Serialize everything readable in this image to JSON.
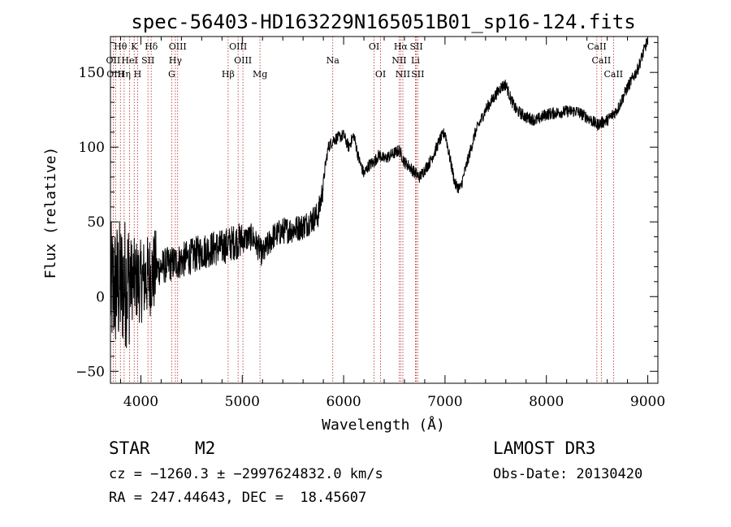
{
  "chart_data": {
    "type": "line",
    "title": "spec-56403-HD163229N165051B01_sp16-124.fits",
    "xlabel": "Wavelength (Å)",
    "ylabel": "Flux (relative)",
    "xlim": [
      3700,
      9100
    ],
    "ylim": [
      -58,
      174
    ],
    "x_ticks": [
      4000,
      5000,
      6000,
      7000,
      8000,
      9000
    ],
    "y_ticks": [
      -50,
      0,
      50,
      100,
      150
    ],
    "grid": false,
    "series_color": "#000000",
    "line_marker_color": "#b22222",
    "spectrum_anchors": [
      [
        3700,
        5
      ],
      [
        3800,
        8
      ],
      [
        3900,
        12
      ],
      [
        4000,
        10
      ],
      [
        4100,
        15
      ],
      [
        4200,
        20
      ],
      [
        4300,
        22
      ],
      [
        4400,
        24
      ],
      [
        4500,
        27
      ],
      [
        4600,
        30
      ],
      [
        4700,
        32
      ],
      [
        4800,
        33
      ],
      [
        4900,
        36
      ],
      [
        5000,
        38
      ],
      [
        5100,
        40
      ],
      [
        5200,
        28
      ],
      [
        5300,
        40
      ],
      [
        5400,
        44
      ],
      [
        5500,
        45
      ],
      [
        5600,
        47
      ],
      [
        5700,
        52
      ],
      [
        5750,
        55
      ],
      [
        5790,
        70
      ],
      [
        5820,
        88
      ],
      [
        5850,
        100
      ],
      [
        5900,
        105
      ],
      [
        6000,
        108
      ],
      [
        6050,
        100
      ],
      [
        6100,
        108
      ],
      [
        6150,
        92
      ],
      [
        6200,
        82
      ],
      [
        6250,
        88
      ],
      [
        6300,
        90
      ],
      [
        6350,
        95
      ],
      [
        6400,
        92
      ],
      [
        6500,
        96
      ],
      [
        6550,
        98
      ],
      [
        6600,
        90
      ],
      [
        6650,
        87
      ],
      [
        6700,
        83
      ],
      [
        6750,
        80
      ],
      [
        6800,
        85
      ],
      [
        6850,
        90
      ],
      [
        6900,
        97
      ],
      [
        6950,
        105
      ],
      [
        7000,
        110
      ],
      [
        7050,
        92
      ],
      [
        7100,
        75
      ],
      [
        7150,
        72
      ],
      [
        7200,
        85
      ],
      [
        7300,
        110
      ],
      [
        7400,
        125
      ],
      [
        7500,
        135
      ],
      [
        7550,
        140
      ],
      [
        7600,
        142
      ],
      [
        7650,
        132
      ],
      [
        7700,
        125
      ],
      [
        7800,
        120
      ],
      [
        7900,
        118
      ],
      [
        8000,
        122
      ],
      [
        8100,
        123
      ],
      [
        8200,
        124
      ],
      [
        8300,
        124
      ],
      [
        8400,
        120
      ],
      [
        8500,
        115
      ],
      [
        8600,
        118
      ],
      [
        8700,
        125
      ],
      [
        8800,
        140
      ],
      [
        8900,
        152
      ],
      [
        8950,
        162
      ],
      [
        9000,
        172
      ]
    ],
    "spectral_lines": [
      {
        "label": "Hθ",
        "x": 3798,
        "row": 1
      },
      {
        "label": "K",
        "x": 3934,
        "row": 1
      },
      {
        "label": "Hδ",
        "x": 4102,
        "row": 1
      },
      {
        "label": "OIII",
        "x": 4363,
        "row": 1
      },
      {
        "label": "OIII",
        "x": 4959,
        "row": 1
      },
      {
        "label": "OI",
        "x": 6300,
        "row": 1
      },
      {
        "label": "Hα",
        "x": 6563,
        "row": 1
      },
      {
        "label": "SII",
        "x": 6717,
        "row": 1
      },
      {
        "label": "CaII",
        "x": 8498,
        "row": 1
      },
      {
        "label": "OII",
        "x": 3727,
        "row": 2
      },
      {
        "label": "HeI",
        "x": 3889,
        "row": 2
      },
      {
        "label": "SII",
        "x": 4070,
        "row": 2
      },
      {
        "label": "Hγ",
        "x": 4340,
        "row": 2
      },
      {
        "label": "OIII",
        "x": 5007,
        "row": 2
      },
      {
        "label": "Na",
        "x": 5893,
        "row": 2
      },
      {
        "label": "NII",
        "x": 6548,
        "row": 2
      },
      {
        "label": "Li",
        "x": 6708,
        "row": 2
      },
      {
        "label": "CaII",
        "x": 8542,
        "row": 2
      },
      {
        "label": "OIII",
        "x": 3750,
        "row": 3
      },
      {
        "label": "Hη",
        "x": 3835,
        "row": 3
      },
      {
        "label": "H",
        "x": 3968,
        "row": 3
      },
      {
        "label": "G",
        "x": 4304,
        "row": 3
      },
      {
        "label": "Hβ",
        "x": 4861,
        "row": 3
      },
      {
        "label": "Mg",
        "x": 5175,
        "row": 3
      },
      {
        "label": "OI",
        "x": 6364,
        "row": 3
      },
      {
        "label": "NII",
        "x": 6584,
        "row": 3
      },
      {
        "label": "SII",
        "x": 6731,
        "row": 3
      },
      {
        "label": "CaII",
        "x": 8662,
        "row": 3
      }
    ]
  },
  "info": {
    "object_class": "STAR",
    "subclass": "M2",
    "survey": "LAMOST DR3",
    "redshift_line": "cz = −1260.3 ± −2997624832.0 km/s",
    "obs_date": "Obs-Date: 20130420",
    "coords": "RA = 247.44643, DEC =  18.45607"
  }
}
